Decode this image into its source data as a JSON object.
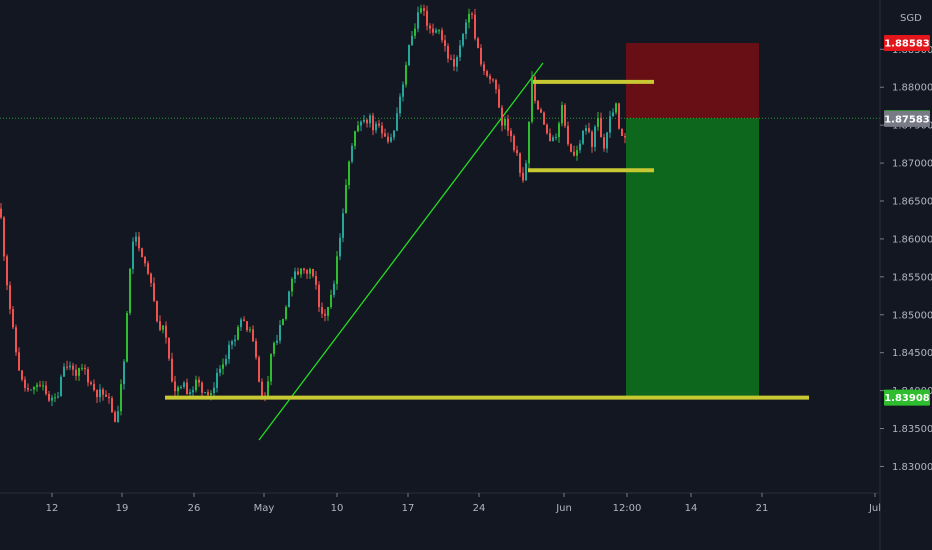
{
  "currency_label": "SGD",
  "chart_data": {
    "type": "candlestick",
    "title": "",
    "xlabel": "",
    "ylabel": "",
    "x_ticks": [
      "12",
      "19",
      "26",
      "May",
      "10",
      "17",
      "24",
      "Jun",
      "12:00",
      "14",
      "21",
      "Jul"
    ],
    "y_ticks": [
      "1.83000",
      "1.83500",
      "1.84000",
      "1.84500",
      "1.85000",
      "1.85500",
      "1.86000",
      "1.86500",
      "1.87000",
      "1.87500",
      "1.88000",
      "1.88500"
    ],
    "ylim": [
      1.8265,
      1.8915
    ],
    "grid": false,
    "colors": {
      "background": "#131722",
      "up_candle": "#26a69a",
      "up_candle_bright": "#2ebd2e",
      "down_candle": "#ef5350",
      "support_line": "#c8c832",
      "trendline": "#22dd22",
      "stop_zone": "#6b0f14",
      "target_zone": "#0d6b1c",
      "axis_text": "#b2b5be"
    },
    "price_labels": [
      {
        "name": "stop-loss",
        "value": "1.88583",
        "bg": "#e3161c",
        "fg": "#ffffff"
      },
      {
        "name": "last-price",
        "value": "1.87591",
        "bg": "#2ebd2e",
        "fg": "#ffffff"
      },
      {
        "name": "bid",
        "value": "1.87583",
        "bg": "#787b86",
        "fg": "#ffffff"
      },
      {
        "name": "take-profit",
        "value": "1.83908",
        "bg": "#2ebd2e",
        "fg": "#ffffff"
      }
    ],
    "annotations": {
      "support_level": 1.83908,
      "range_high": 1.8807,
      "range_low": 1.86905,
      "position": {
        "entry": 1.87591,
        "stop": 1.88583,
        "target": 1.83908
      }
    },
    "price_path": [
      [
        0,
        1.864
      ],
      [
        6,
        1.8555
      ],
      [
        14,
        1.8465
      ],
      [
        22,
        1.841
      ],
      [
        30,
        1.8395
      ],
      [
        40,
        1.8405
      ],
      [
        50,
        1.839
      ],
      [
        58,
        1.84
      ],
      [
        66,
        1.8435
      ],
      [
        74,
        1.8425
      ],
      [
        84,
        1.843
      ],
      [
        92,
        1.8405
      ],
      [
        100,
        1.8395
      ],
      [
        108,
        1.84
      ],
      [
        114,
        1.8352
      ],
      [
        119,
        1.8385
      ],
      [
        124,
        1.844
      ],
      [
        130,
        1.856
      ],
      [
        135,
        1.8612
      ],
      [
        140,
        1.859
      ],
      [
        146,
        1.856
      ],
      [
        152,
        1.853
      ],
      [
        158,
        1.849
      ],
      [
        164,
        1.848
      ],
      [
        170,
        1.843
      ],
      [
        176,
        1.8398
      ],
      [
        182,
        1.8405
      ],
      [
        190,
        1.84
      ],
      [
        198,
        1.841
      ],
      [
        206,
        1.8398
      ],
      [
        214,
        1.8402
      ],
      [
        220,
        1.843
      ],
      [
        228,
        1.8455
      ],
      [
        236,
        1.8478
      ],
      [
        244,
        1.8492
      ],
      [
        252,
        1.848
      ],
      [
        258,
        1.842
      ],
      [
        263,
        1.838
      ],
      [
        268,
        1.842
      ],
      [
        274,
        1.8465
      ],
      [
        282,
        1.8488
      ],
      [
        290,
        1.8535
      ],
      [
        298,
        1.856
      ],
      [
        306,
        1.8558
      ],
      [
        314,
        1.8548
      ],
      [
        320,
        1.851
      ],
      [
        326,
        1.8505
      ],
      [
        332,
        1.8522
      ],
      [
        338,
        1.858
      ],
      [
        344,
        1.864
      ],
      [
        350,
        1.872
      ],
      [
        358,
        1.875
      ],
      [
        366,
        1.8762
      ],
      [
        374,
        1.8748
      ],
      [
        382,
        1.8738
      ],
      [
        390,
        1.8725
      ],
      [
        398,
        1.8775
      ],
      [
        406,
        1.883
      ],
      [
        414,
        1.888
      ],
      [
        420,
        1.89
      ],
      [
        426,
        1.889
      ],
      [
        432,
        1.887
      ],
      [
        440,
        1.8875
      ],
      [
        446,
        1.8855
      ],
      [
        452,
        1.8825
      ],
      [
        458,
        1.884
      ],
      [
        464,
        1.888
      ],
      [
        470,
        1.8905
      ],
      [
        476,
        1.886
      ],
      [
        482,
        1.883
      ],
      [
        488,
        1.8805
      ],
      [
        494,
        1.8808
      ],
      [
        500,
        1.876
      ],
      [
        506,
        1.8752
      ],
      [
        512,
        1.8735
      ],
      [
        518,
        1.87
      ],
      [
        524,
        1.8672
      ],
      [
        528,
        1.874
      ],
      [
        532,
        1.8808
      ],
      [
        538,
        1.877
      ],
      [
        544,
        1.8752
      ],
      [
        550,
        1.8722
      ],
      [
        556,
        1.8738
      ],
      [
        562,
        1.878
      ],
      [
        568,
        1.8728
      ],
      [
        574,
        1.8708
      ],
      [
        580,
        1.8722
      ],
      [
        586,
        1.875
      ],
      [
        592,
        1.8722
      ],
      [
        598,
        1.8762
      ],
      [
        604,
        1.8718
      ],
      [
        610,
        1.8755
      ],
      [
        616,
        1.8772
      ],
      [
        621,
        1.8735
      ],
      [
        626,
        1.8726
      ]
    ]
  }
}
